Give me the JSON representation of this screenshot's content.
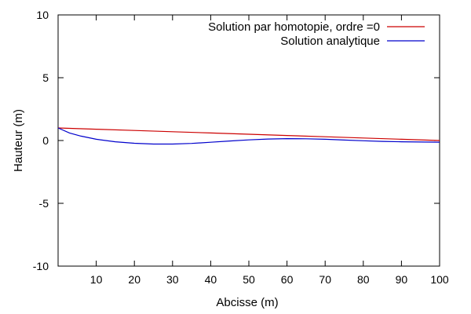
{
  "chart_data": {
    "type": "line",
    "title": "",
    "xlabel": "Abcisse (m)",
    "ylabel": "Hauteur (m)",
    "xlim": [
      0,
      100
    ],
    "ylim": [
      -10,
      10
    ],
    "x_ticks": [
      10,
      20,
      30,
      40,
      50,
      60,
      70,
      80,
      90,
      100
    ],
    "y_ticks": [
      -10,
      -5,
      0,
      5,
      10
    ],
    "grid": false,
    "legend_position": "top-right",
    "series": [
      {
        "name": "Solution par homotopie, ordre =0",
        "color": "#cc0000",
        "x": [
          0,
          10,
          20,
          30,
          40,
          50,
          60,
          70,
          80,
          90,
          100
        ],
        "y": [
          1.0,
          0.9,
          0.8,
          0.7,
          0.6,
          0.5,
          0.4,
          0.3,
          0.2,
          0.1,
          0.0
        ]
      },
      {
        "name": "Solution analytique",
        "color": "#0000cc",
        "x": [
          0,
          3,
          6,
          10,
          15,
          20,
          25,
          30,
          35,
          40,
          45,
          50,
          55,
          60,
          65,
          70,
          75,
          80,
          85,
          90,
          95,
          100
        ],
        "y": [
          1.0,
          0.6,
          0.35,
          0.1,
          -0.1,
          -0.22,
          -0.28,
          -0.28,
          -0.23,
          -0.14,
          -0.04,
          0.05,
          0.12,
          0.15,
          0.14,
          0.1,
          0.04,
          -0.02,
          -0.07,
          -0.1,
          -0.12,
          -0.13
        ]
      }
    ]
  }
}
